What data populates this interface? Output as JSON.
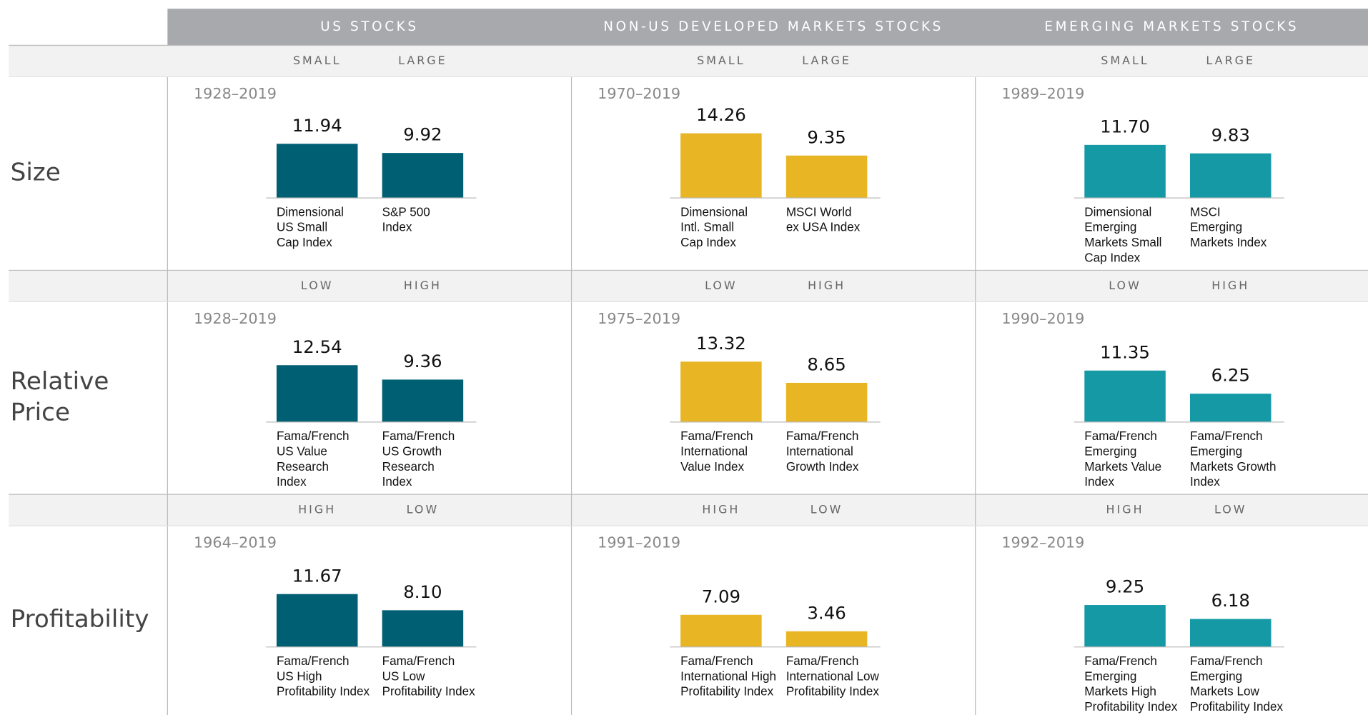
{
  "columns": [
    "US STOCKS",
    "NON-US DEVELOPED MARKETS STOCKS",
    "EMERGING MARKETS STOCKS"
  ],
  "rows": [
    {
      "label": [
        "Size"
      ],
      "subheaders": [
        "SMALL",
        "LARGE"
      ]
    },
    {
      "label": [
        "Relative",
        "Price"
      ],
      "subheaders": [
        "LOW",
        "HIGH"
      ]
    },
    {
      "label": [
        "Profitability"
      ],
      "subheaders": [
        "HIGH",
        "LOW"
      ]
    }
  ],
  "chart_data": [
    {
      "type": "bar",
      "subtitle": "1928–2019",
      "color": "#005f73",
      "values": [
        11.94,
        9.92
      ],
      "value_labels": [
        "11.94",
        "9.92"
      ],
      "categories": [
        [
          "Dimensional",
          "US Small",
          "Cap Index"
        ],
        [
          "S&P 500",
          "Index"
        ]
      ]
    },
    {
      "type": "bar",
      "subtitle": "1970–2019",
      "color": "#e8b625",
      "values": [
        14.26,
        9.35
      ],
      "value_labels": [
        "14.26",
        "9.35"
      ],
      "categories": [
        [
          "Dimensional",
          "Intl. Small",
          "Cap Index"
        ],
        [
          "MSCI World",
          "ex USA Index"
        ]
      ]
    },
    {
      "type": "bar",
      "subtitle": "1989–2019",
      "color": "#1599a5",
      "values": [
        11.7,
        9.83
      ],
      "value_labels": [
        "11.70",
        "9.83"
      ],
      "categories": [
        [
          "Dimensional",
          "Emerging",
          "Markets Small",
          "Cap Index"
        ],
        [
          "MSCI",
          "Emerging",
          "Markets Index"
        ]
      ]
    },
    {
      "type": "bar",
      "subtitle": "1928–2019",
      "color": "#005f73",
      "values": [
        12.54,
        9.36
      ],
      "value_labels": [
        "12.54",
        "9.36"
      ],
      "categories": [
        [
          "Fama/French",
          "US Value",
          "Research",
          "Index"
        ],
        [
          "Fama/French",
          "US Growth",
          "Research",
          "Index"
        ]
      ]
    },
    {
      "type": "bar",
      "subtitle": "1975–2019",
      "color": "#e8b625",
      "values": [
        13.32,
        8.65
      ],
      "value_labels": [
        "13.32",
        "8.65"
      ],
      "categories": [
        [
          "Fama/French",
          "International",
          "Value Index"
        ],
        [
          "Fama/French",
          "International",
          "Growth Index"
        ]
      ]
    },
    {
      "type": "bar",
      "subtitle": "1990–2019",
      "color": "#1599a5",
      "values": [
        11.35,
        6.25
      ],
      "value_labels": [
        "11.35",
        "6.25"
      ],
      "categories": [
        [
          "Fama/French",
          "Emerging",
          "Markets Value",
          "Index"
        ],
        [
          "Fama/French",
          "Emerging",
          "Markets Growth",
          "Index"
        ]
      ]
    },
    {
      "type": "bar",
      "subtitle": "1964–2019",
      "color": "#005f73",
      "values": [
        11.67,
        8.1
      ],
      "value_labels": [
        "11.67",
        "8.10"
      ],
      "categories": [
        [
          "Fama/French",
          "US High",
          "Profitability Index"
        ],
        [
          "Fama/French",
          "US Low",
          "Profitability Index"
        ]
      ]
    },
    {
      "type": "bar",
      "subtitle": "1991–2019",
      "color": "#e8b625",
      "values": [
        7.09,
        3.46
      ],
      "value_labels": [
        "7.09",
        "3.46"
      ],
      "categories": [
        [
          "Fama/French",
          "International High",
          "Profitability Index"
        ],
        [
          "Fama/French",
          "International Low",
          "Profitability Index"
        ]
      ]
    },
    {
      "type": "bar",
      "subtitle": "1992–2019",
      "color": "#1599a5",
      "values": [
        9.25,
        6.18
      ],
      "value_labels": [
        "9.25",
        "6.18"
      ],
      "categories": [
        [
          "Fama/French",
          "Emerging",
          "Markets High",
          "Profitability Index"
        ],
        [
          "Fama/French",
          "Emerging",
          "Markets Low",
          "Profitability Index"
        ]
      ]
    }
  ]
}
